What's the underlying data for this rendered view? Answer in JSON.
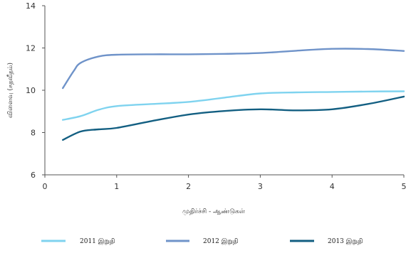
{
  "chart_data": {
    "type": "line",
    "title": "",
    "xlabel": "முதிர்ச்சி - ஆண்டுகள்",
    "ylabel": "விளைவு (சதவீதம்)",
    "xlim": [
      0,
      5
    ],
    "ylim": [
      6,
      14
    ],
    "x_ticks": [
      "0",
      "1",
      "2",
      "3",
      "4",
      "5"
    ],
    "y_ticks": [
      "6",
      "8",
      "10",
      "12",
      "14"
    ],
    "grid": false,
    "legend_position": "bottom",
    "series": [
      {
        "name": "2011 இறுதி",
        "color": "#7fd3ef",
        "points": [
          [
            0.25,
            8.6
          ],
          [
            0.5,
            8.78
          ],
          [
            0.75,
            9.08
          ],
          [
            1.0,
            9.25
          ],
          [
            1.5,
            9.35
          ],
          [
            2.0,
            9.45
          ],
          [
            2.5,
            9.65
          ],
          [
            3.0,
            9.85
          ],
          [
            3.5,
            9.9
          ],
          [
            4.0,
            9.92
          ],
          [
            4.5,
            9.94
          ],
          [
            5.0,
            9.95
          ]
        ]
      },
      {
        "name": "2012 இறுதி",
        "color": "#6f93c9",
        "points": [
          [
            0.25,
            10.1
          ],
          [
            0.4,
            10.9
          ],
          [
            0.5,
            11.3
          ],
          [
            0.75,
            11.6
          ],
          [
            1.0,
            11.68
          ],
          [
            1.5,
            11.7
          ],
          [
            2.0,
            11.7
          ],
          [
            2.5,
            11.72
          ],
          [
            3.0,
            11.76
          ],
          [
            3.5,
            11.87
          ],
          [
            4.0,
            11.96
          ],
          [
            4.5,
            11.95
          ],
          [
            5.0,
            11.86
          ]
        ]
      },
      {
        "name": "2013 இறுதி",
        "color": "#135f82",
        "points": [
          [
            0.25,
            7.65
          ],
          [
            0.5,
            8.05
          ],
          [
            0.75,
            8.15
          ],
          [
            1.0,
            8.22
          ],
          [
            1.5,
            8.55
          ],
          [
            2.0,
            8.85
          ],
          [
            2.5,
            9.02
          ],
          [
            3.0,
            9.1
          ],
          [
            3.5,
            9.05
          ],
          [
            4.0,
            9.1
          ],
          [
            4.5,
            9.35
          ],
          [
            5.0,
            9.7
          ]
        ]
      }
    ]
  }
}
